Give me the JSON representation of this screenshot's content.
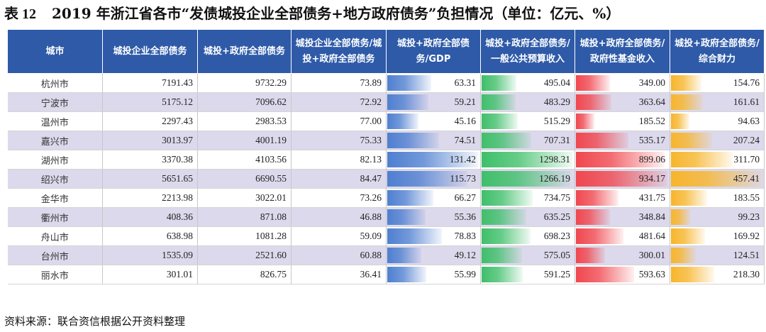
{
  "title": {
    "table_no": "表 12",
    "text": "2019 年浙江省各市“发债城投企业全部债务+地方政府债务”负担情况（单位：亿元、%）"
  },
  "columns": [
    "城市",
    "城投企业全部债务",
    "城投+政府全部债务",
    "城投企业全部债务/城投+政府全部债务",
    "城投+政府全部债务/GDP",
    "城投+政府全部债务/一般公共预算收入",
    "城投+政府全部债务/政府性基金收入",
    "城投+政府全部债务/综合财力"
  ],
  "rows": [
    {
      "city": "杭州市",
      "a": "7191.43",
      "b": "9732.29",
      "c": "73.89",
      "d": "63.31",
      "e": "495.04",
      "f": "349.00",
      "g": "154.76"
    },
    {
      "city": "宁波市",
      "a": "5175.12",
      "b": "7096.62",
      "c": "72.92",
      "d": "59.21",
      "e": "483.29",
      "f": "363.64",
      "g": "161.61"
    },
    {
      "city": "温州市",
      "a": "2297.43",
      "b": "2983.53",
      "c": "77.00",
      "d": "45.16",
      "e": "515.29",
      "f": "185.52",
      "g": "94.63"
    },
    {
      "city": "嘉兴市",
      "a": "3013.97",
      "b": "4001.19",
      "c": "75.33",
      "d": "74.51",
      "e": "707.31",
      "f": "535.17",
      "g": "207.24"
    },
    {
      "city": "湖州市",
      "a": "3370.38",
      "b": "4103.56",
      "c": "82.13",
      "d": "131.42",
      "e": "1298.31",
      "f": "899.06",
      "g": "311.70"
    },
    {
      "city": "绍兴市",
      "a": "5651.65",
      "b": "6690.55",
      "c": "84.47",
      "d": "115.73",
      "e": "1266.19",
      "f": "934.17",
      "g": "457.41"
    },
    {
      "city": "金华市",
      "a": "2213.98",
      "b": "3022.01",
      "c": "73.26",
      "d": "66.27",
      "e": "734.75",
      "f": "431.75",
      "g": "183.55"
    },
    {
      "city": "衢州市",
      "a": "408.36",
      "b": "871.08",
      "c": "46.88",
      "d": "55.36",
      "e": "635.25",
      "f": "348.84",
      "g": "99.23"
    },
    {
      "city": "舟山市",
      "a": "638.98",
      "b": "1081.28",
      "c": "59.09",
      "d": "78.83",
      "e": "698.23",
      "f": "481.64",
      "g": "169.92"
    },
    {
      "city": "台州市",
      "a": "1535.09",
      "b": "2521.60",
      "c": "60.88",
      "d": "49.12",
      "e": "575.05",
      "f": "300.01",
      "g": "124.51"
    },
    {
      "city": "丽水市",
      "a": "301.01",
      "b": "826.75",
      "c": "36.41",
      "d": "55.99",
      "e": "591.25",
      "f": "593.63",
      "g": "218.30"
    }
  ],
  "databar_colors": {
    "d": "#4f7fd0",
    "e": "#3fbf6a",
    "f": "#f0474f",
    "g": "#f7b52c"
  },
  "footer": "资料来源：联合资信根据公开资料整理"
}
